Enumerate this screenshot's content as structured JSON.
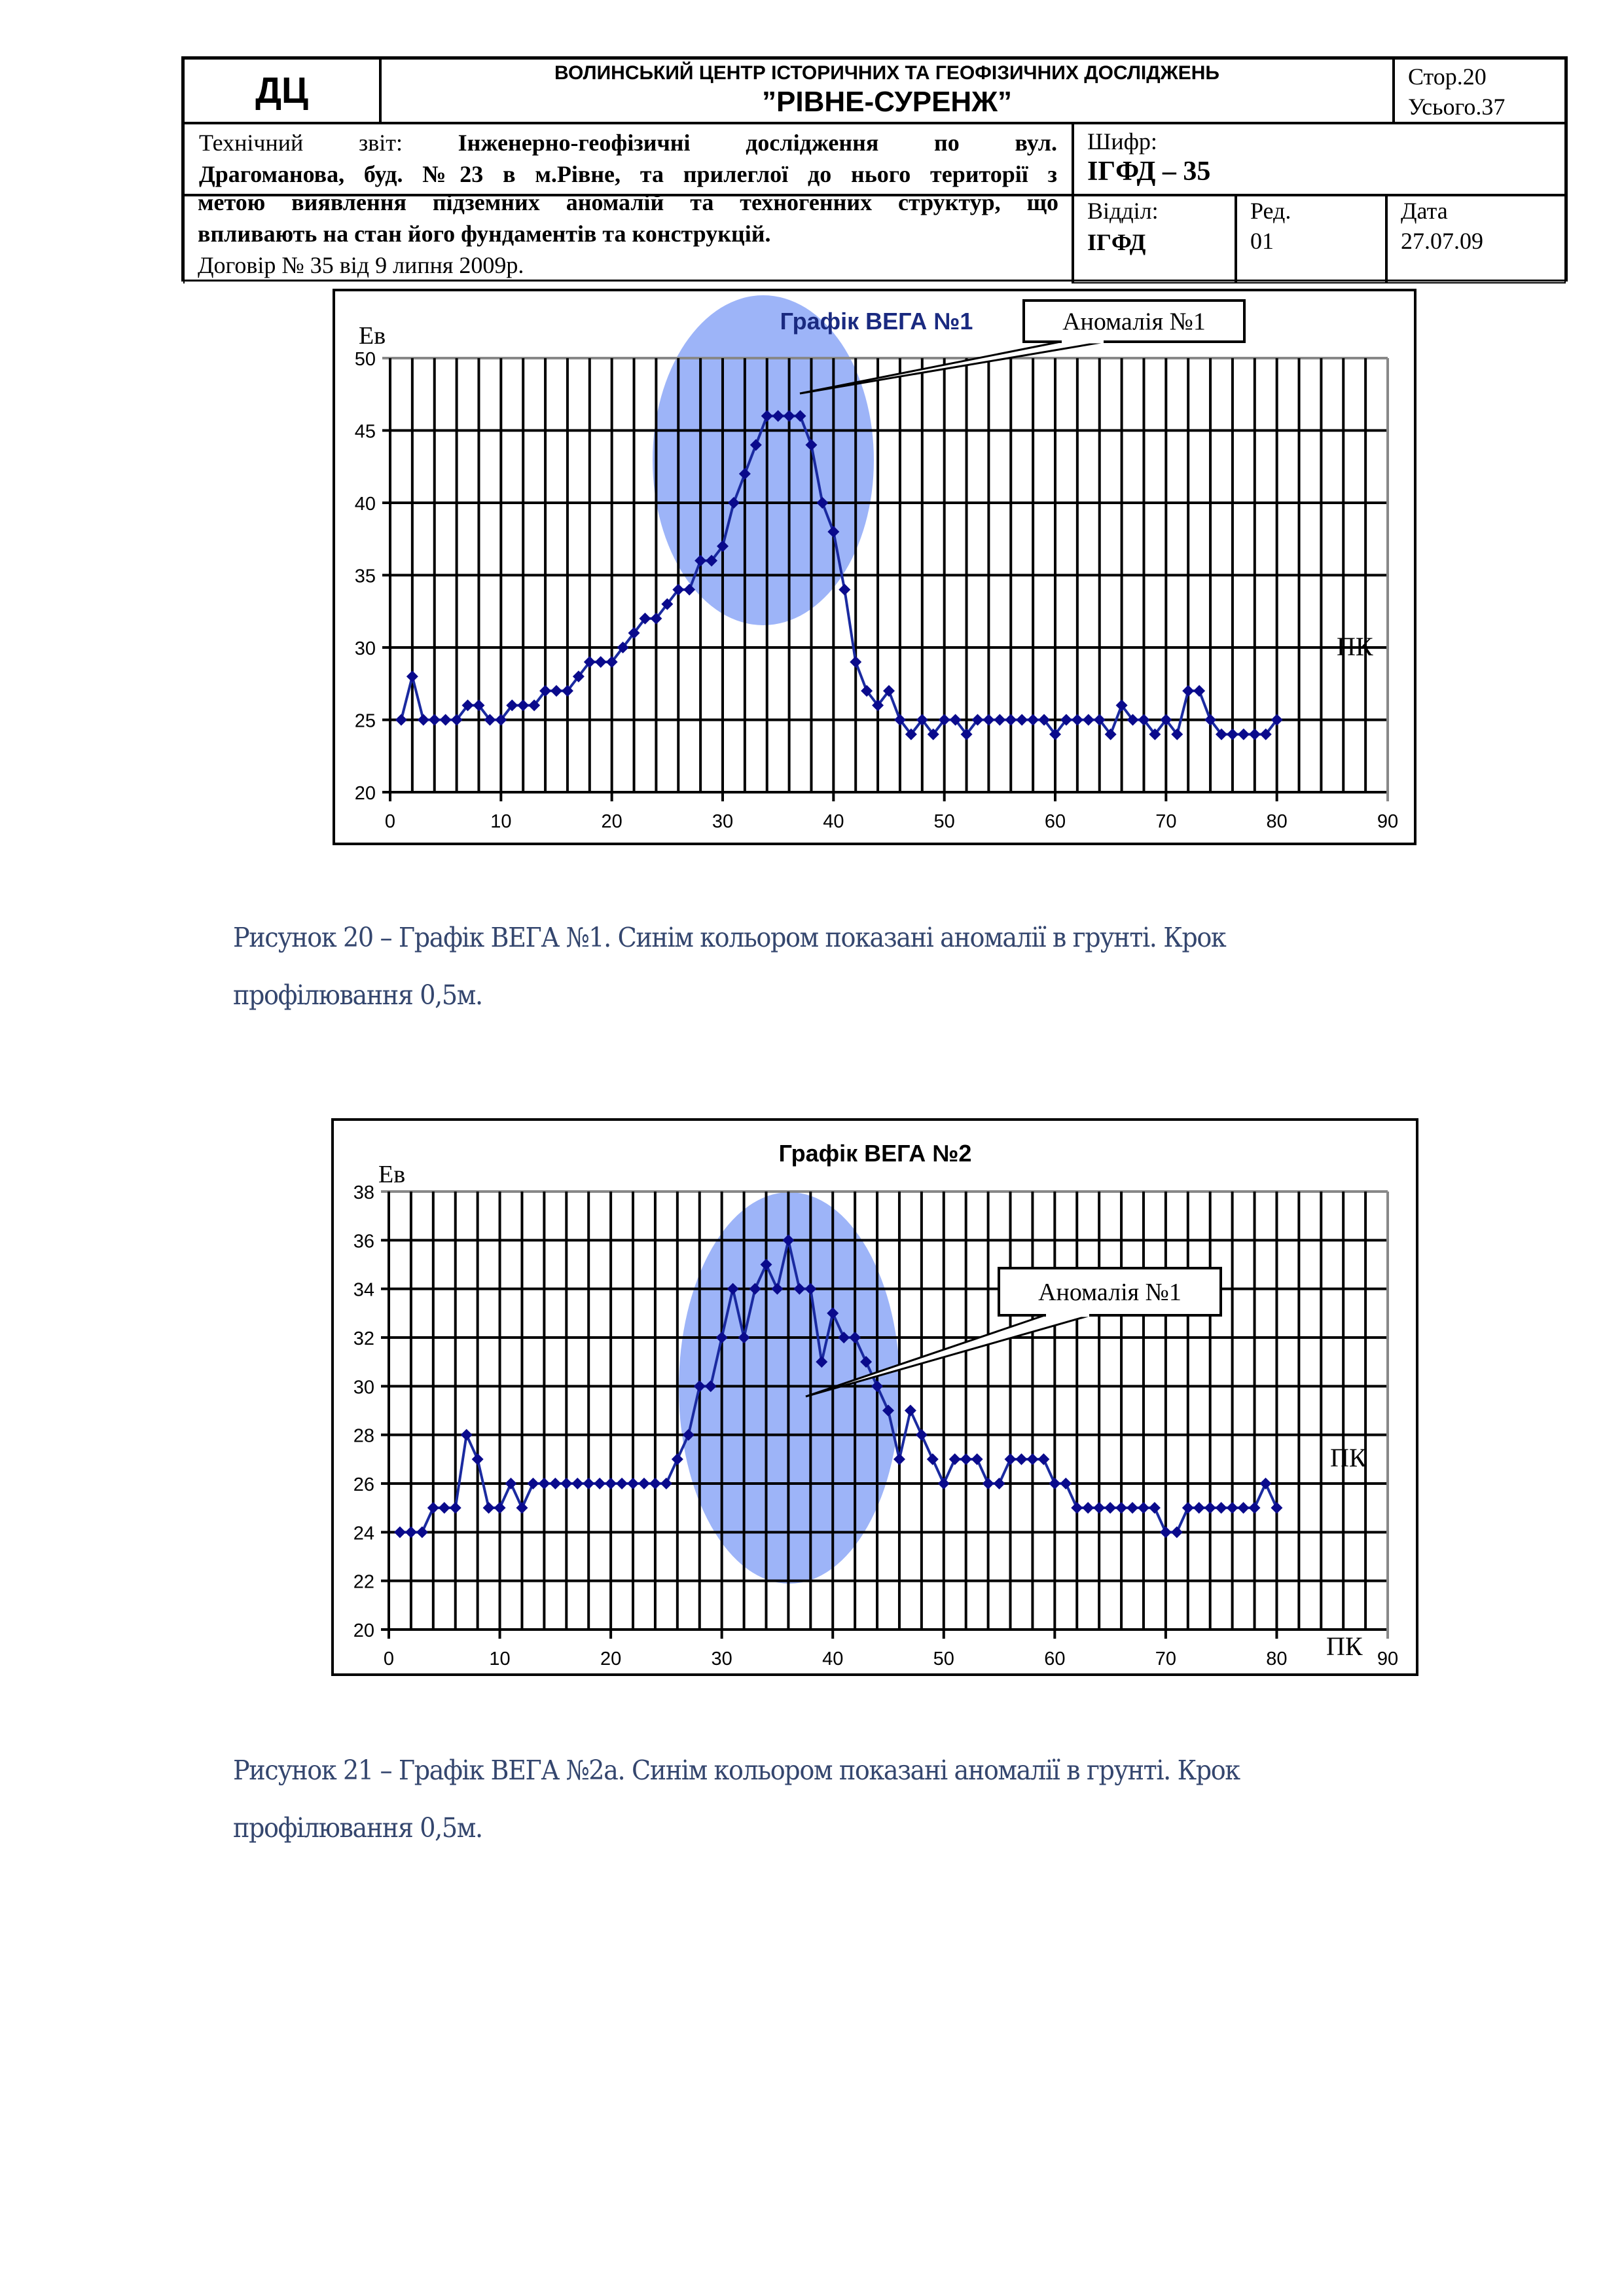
{
  "header": {
    "logo": "ДЦ",
    "org_line1": "ВОЛИНСЬКИЙ ЦЕНТР ІСТОРИЧНИХ ТА ГЕОФІЗИЧНИХ ДОСЛІДЖЕНЬ",
    "org_line2": "”РІВНЕ-СУРЕНЖ”",
    "page": "Стор.20",
    "total": "Усього.37",
    "report_prefix": "Технічний звіт:",
    "report_line1_bold": "Інженерно-геофізичні дослідження по вул.",
    "report_line2": "Драгоманова, буд. №23 в м.Рівне, та прилеглої до нього території з",
    "report_line3": "метою виявлення підземних аномалій та техногенних структур, що",
    "report_line4": "впливають на стан його фундаментів та конструкцій.",
    "contract": "Договір № 35 від 9 липня 2009р.",
    "cipher_label": "Шифр:",
    "cipher_value": "ІГФД – 35",
    "dept_label": "Відділ:",
    "dept_value": "ІГФД",
    "rev_label": "Ред.",
    "rev_value": "01",
    "date_label": "Дата",
    "date_value": "27.07.09"
  },
  "captions": {
    "fig20_line1": "Рисунок 20 – Графік ВЕГА №1. Синім кольором показані аномалії в грунті. Крок",
    "fig20_line2": "профілювання 0,5м.",
    "fig21_line1": "Рисунок 21 – Графік ВЕГА №2а. Синім кольором показані аномалії в грунті. Крок",
    "fig21_line2": "профілювання 0,5м."
  },
  "colors": {
    "series": "#0a0a8c",
    "anomaly": "#98b0f8",
    "caption": "#34466e"
  },
  "chart_data": [
    {
      "type": "line",
      "title": "Графік ВЕГА №1",
      "ylabel": "Ев",
      "xlabel": "ПК",
      "annotation": "Аномалія №1",
      "anomaly_range_x": [
        24,
        44
      ],
      "xlim": [
        0,
        90
      ],
      "ylim": [
        20,
        50
      ],
      "ystep": 5,
      "xstep": 10,
      "xgrid_step": 2,
      "grid": true,
      "x": [
        1,
        2,
        3,
        4,
        5,
        6,
        7,
        8,
        9,
        10,
        11,
        12,
        13,
        14,
        15,
        16,
        17,
        18,
        19,
        20,
        21,
        22,
        23,
        24,
        25,
        26,
        27,
        28,
        29,
        30,
        31,
        32,
        33,
        34,
        35,
        36,
        37,
        38,
        39,
        40,
        41,
        42,
        43,
        44,
        45,
        46,
        47,
        48,
        49,
        50,
        51,
        52,
        53,
        54,
        55,
        56,
        57,
        58,
        59,
        60,
        61,
        62,
        63,
        64,
        65,
        66,
        67,
        68,
        69,
        70,
        71,
        72,
        73,
        74,
        75,
        76,
        77,
        78,
        79,
        80
      ],
      "values": [
        25,
        28,
        25,
        25,
        25,
        25,
        26,
        26,
        25,
        25,
        26,
        26,
        26,
        27,
        27,
        27,
        28,
        29,
        29,
        29,
        30,
        31,
        32,
        32,
        33,
        34,
        34,
        36,
        36,
        37,
        40,
        42,
        44,
        46,
        46,
        46,
        46,
        44,
        40,
        38,
        34,
        29,
        27,
        26,
        27,
        25,
        24,
        25,
        24,
        25,
        25,
        24,
        25,
        25,
        25,
        25,
        25,
        25,
        25,
        24,
        25,
        25,
        25,
        25,
        24,
        26,
        25,
        25,
        24,
        25,
        24,
        27,
        27,
        25,
        24,
        24,
        24,
        24,
        24,
        25
      ]
    },
    {
      "type": "line",
      "title": "Графік ВЕГА №2",
      "ylabel": "Ев",
      "xlabel": "ПК",
      "annotation": "Аномалія №1",
      "anomaly_range_x": [
        26,
        46
      ],
      "xlim": [
        0,
        90
      ],
      "ylim": [
        20,
        38
      ],
      "ystep": 2,
      "xstep": 10,
      "xgrid_step": 2,
      "grid": true,
      "x": [
        1,
        2,
        3,
        4,
        5,
        6,
        7,
        8,
        9,
        10,
        11,
        12,
        13,
        14,
        15,
        16,
        17,
        18,
        19,
        20,
        21,
        22,
        23,
        24,
        25,
        26,
        27,
        28,
        29,
        30,
        31,
        32,
        33,
        34,
        35,
        36,
        37,
        38,
        39,
        40,
        41,
        42,
        43,
        44,
        45,
        46,
        47,
        48,
        49,
        50,
        51,
        52,
        53,
        54,
        55,
        56,
        57,
        58,
        59,
        60,
        61,
        62,
        63,
        64,
        65,
        66,
        67,
        68,
        69,
        70,
        71,
        72,
        73,
        74,
        75,
        76,
        77,
        78,
        79,
        80
      ],
      "values": [
        24,
        24,
        24,
        25,
        25,
        25,
        28,
        27,
        25,
        25,
        26,
        25,
        26,
        26,
        26,
        26,
        26,
        26,
        26,
        26,
        26,
        26,
        26,
        26,
        26,
        27,
        28,
        30,
        30,
        32,
        34,
        32,
        34,
        35,
        34,
        36,
        34,
        34,
        31,
        33,
        32,
        32,
        31,
        30,
        29,
        27,
        29,
        28,
        27,
        26,
        27,
        27,
        27,
        26,
        26,
        27,
        27,
        27,
        27,
        26,
        26,
        25,
        25,
        25,
        25,
        25,
        25,
        25,
        25,
        24,
        24,
        25,
        25,
        25,
        25,
        25,
        25,
        25,
        26,
        25
      ]
    }
  ]
}
